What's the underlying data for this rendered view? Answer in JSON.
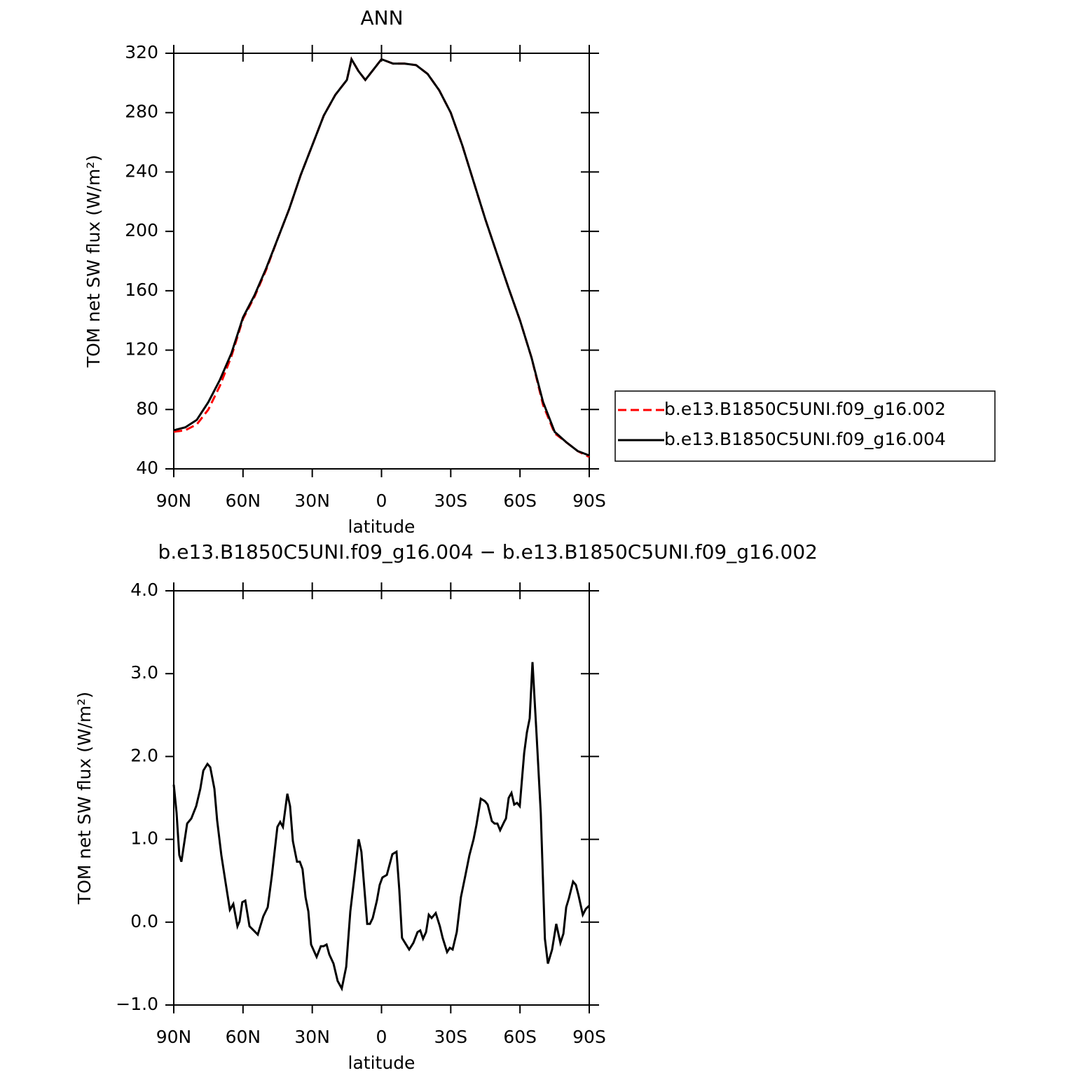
{
  "chart_data": [
    {
      "type": "line",
      "title": "ANN",
      "x_label": "latitude",
      "y_label": "TOM net SW flux (W/m²)",
      "xlim": [
        90,
        -90
      ],
      "xticks": [
        {
          "value": 90,
          "label": "90N"
        },
        {
          "value": 60,
          "label": "60N"
        },
        {
          "value": 30,
          "label": "30N"
        },
        0,
        {
          "value": -30,
          "label": "30S"
        },
        {
          "value": -60,
          "label": "60S"
        },
        {
          "value": -90,
          "label": "90S"
        }
      ],
      "ylim": [
        40,
        320
      ],
      "yticks": [
        40,
        80,
        120,
        160,
        200,
        240,
        280,
        320
      ],
      "legend": "right",
      "x": [
        90,
        85,
        80,
        75,
        70,
        65,
        60,
        55,
        50,
        45,
        40,
        35,
        30,
        25,
        20,
        15,
        13,
        10,
        7,
        3,
        0,
        -5,
        -10,
        -15,
        -20,
        -25,
        -30,
        -35,
        -40,
        -45,
        -50,
        -55,
        -60,
        -65,
        -70,
        -75,
        -80,
        -85,
        -90
      ],
      "series": [
        {
          "name": "b.e13.B1850C5UNI.f09_g16.002",
          "color": "#ff0000",
          "dash": "dashed",
          "values": [
            65,
            66,
            70,
            80,
            96,
            116,
            141,
            156,
            174,
            195,
            215,
            238,
            258,
            278,
            292,
            302,
            316,
            308,
            302,
            310,
            316,
            313,
            313,
            312,
            306,
            295,
            280,
            258,
            233,
            208,
            185,
            162,
            140,
            115,
            83,
            64,
            58,
            52,
            48
          ]
        },
        {
          "name": "b.e13.B1850C5UNI.f09_g16.004",
          "color": "#000000",
          "dash": "solid",
          "values": [
            66,
            68,
            73,
            85,
            100,
            118,
            142,
            157,
            175,
            195,
            215,
            238,
            258,
            278,
            292,
            302,
            316,
            308,
            302,
            310,
            316,
            313,
            313,
            312,
            306,
            295,
            280,
            258,
            233,
            208,
            185,
            162,
            140,
            115,
            85,
            65,
            58,
            52,
            49
          ]
        }
      ]
    },
    {
      "type": "line",
      "title": "b.e13.B1850C5UNI.f09_g16.004 − b.e13.B1850C5UNI.f09_g16.002",
      "x_label": "latitude",
      "y_label": "TOM net SW flux (W/m²)",
      "xlim": [
        90,
        -90
      ],
      "xticks": [
        {
          "value": 90,
          "label": "90N"
        },
        {
          "value": 60,
          "label": "60N"
        },
        {
          "value": 30,
          "label": "30N"
        },
        0,
        {
          "value": -30,
          "label": "30S"
        },
        {
          "value": -60,
          "label": "60S"
        },
        {
          "value": -90,
          "label": "90S"
        }
      ],
      "ylim": [
        -1,
        4
      ],
      "yticks": [
        {
          "value": -1,
          "label": "−1.0"
        },
        {
          "value": 0,
          "label": "0.0"
        },
        {
          "value": 1,
          "label": "1.0"
        },
        {
          "value": 2,
          "label": "2.0"
        },
        {
          "value": 3,
          "label": "3.0"
        },
        {
          "value": 4,
          "label": "4.0"
        }
      ],
      "x": [
        90,
        88.8,
        87.6,
        86.7,
        84.2,
        82.4,
        80.3,
        78.5,
        77.2,
        75.4,
        74.2,
        72.4,
        71.2,
        69.4,
        67.5,
        65.7,
        64.2,
        62.4,
        61.5,
        60.3,
        59.0,
        57.2,
        55.4,
        53.6,
        51.2,
        49.3,
        47.5,
        45.1,
        43.9,
        42.7,
        40.8,
        39.6,
        38.4,
        36.6,
        35.4,
        34.2,
        32.9,
        31.7,
        30.5,
        28.1,
        26.3,
        25.1,
        23.8,
        22.6,
        20.8,
        19.0,
        17.2,
        15.3,
        13.5,
        11.7,
        9.9,
        8.7,
        6.2,
        5.0,
        3.8,
        2.0,
        0.8,
        -0.4,
        -2.3,
        -4.7,
        -6.5,
        -7.7,
        -8.9,
        -10.2,
        -12.0,
        -13.8,
        -15.6,
        -16.8,
        -18.0,
        -19.3,
        -20.5,
        -21.7,
        -23.5,
        -25.3,
        -26.5,
        -28.4,
        -29.6,
        -30.8,
        -32.6,
        -34.4,
        -36.3,
        -38.1,
        -39.9,
        -41.1,
        -43.0,
        -44.8,
        -46.0,
        -47.8,
        -49.0,
        -50.2,
        -51.4,
        -53.3,
        -53.9,
        -55.1,
        -56.3,
        -57.5,
        -58.7,
        -59.9,
        -61.8,
        -63.0,
        -64.2,
        -65.4,
        -67.2,
        -69.0,
        -70.8,
        -72.1,
        -73.9,
        -75.7,
        -77.5,
        -78.8,
        -80.0,
        -81.2,
        -83.0,
        -84.2,
        -85.4,
        -87.2,
        -88.5,
        -90
      ],
      "series": [
        {
          "color": "#000000",
          "dash": "solid",
          "values": [
            1.66,
            1.32,
            0.81,
            0.73,
            1.19,
            1.25,
            1.4,
            1.61,
            1.83,
            1.91,
            1.87,
            1.61,
            1.23,
            0.81,
            0.47,
            0.15,
            0.22,
            -0.05,
            0.01,
            0.24,
            0.26,
            -0.05,
            -0.1,
            -0.15,
            0.07,
            0.18,
            0.56,
            1.15,
            1.21,
            1.15,
            1.55,
            1.4,
            0.98,
            0.73,
            0.73,
            0.64,
            0.3,
            0.13,
            -0.27,
            -0.42,
            -0.29,
            -0.29,
            -0.27,
            -0.39,
            -0.5,
            -0.71,
            -0.8,
            -0.54,
            0.13,
            0.56,
            1.0,
            0.85,
            -0.02,
            -0.02,
            0.05,
            0.26,
            0.45,
            0.54,
            0.57,
            0.82,
            0.85,
            0.39,
            -0.19,
            -0.25,
            -0.33,
            -0.25,
            -0.12,
            -0.1,
            -0.2,
            -0.12,
            0.09,
            0.05,
            0.11,
            -0.05,
            -0.19,
            -0.36,
            -0.31,
            -0.33,
            -0.12,
            0.3,
            0.56,
            0.81,
            1.0,
            1.17,
            1.49,
            1.46,
            1.42,
            1.22,
            1.19,
            1.19,
            1.11,
            1.22,
            1.25,
            1.5,
            1.56,
            1.42,
            1.44,
            1.4,
            2.04,
            2.29,
            2.46,
            3.14,
            2.25,
            1.32,
            -0.2,
            -0.5,
            -0.33,
            -0.02,
            -0.25,
            -0.14,
            0.18,
            0.29,
            0.49,
            0.45,
            0.32,
            0.09,
            0.16,
            0.2
          ]
        }
      ]
    }
  ]
}
